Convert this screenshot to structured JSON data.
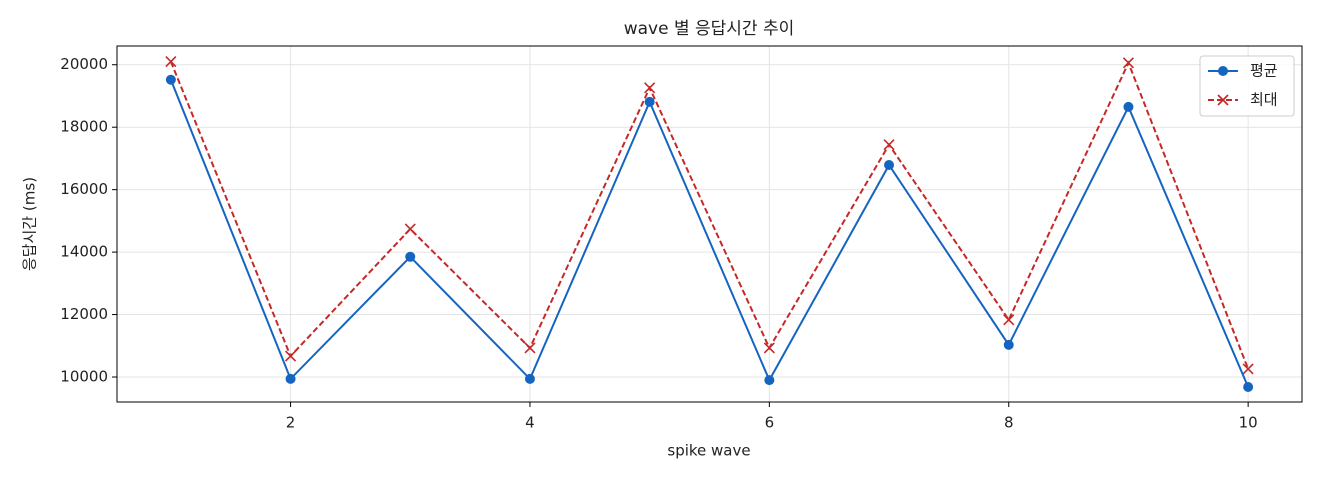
{
  "chart_data": {
    "type": "line",
    "title": "wave 별 응답시간 추이",
    "xlabel": "spike wave",
    "ylabel": "응답시간 (ms)",
    "x": [
      1,
      2,
      3,
      4,
      5,
      6,
      7,
      8,
      9,
      10
    ],
    "series": [
      {
        "name": "평균",
        "color": "#1565c0",
        "marker": "o",
        "linestyle": "solid",
        "values": [
          19520,
          9940,
          13850,
          9940,
          18810,
          9900,
          16790,
          11030,
          18650,
          9680
        ]
      },
      {
        "name": "최대",
        "color": "#c62828",
        "marker": "x",
        "linestyle": "dashed",
        "values": [
          20100,
          10670,
          14740,
          10930,
          19260,
          10930,
          17440,
          11830,
          20060,
          10260
        ]
      }
    ],
    "xlim": [
      0.55,
      10.45
    ],
    "ylim": [
      9200,
      20600
    ],
    "xticks": [
      2,
      4,
      6,
      8,
      10
    ],
    "yticks": [
      10000,
      12000,
      14000,
      16000,
      18000,
      20000
    ],
    "grid": true,
    "legend": "upper right"
  }
}
